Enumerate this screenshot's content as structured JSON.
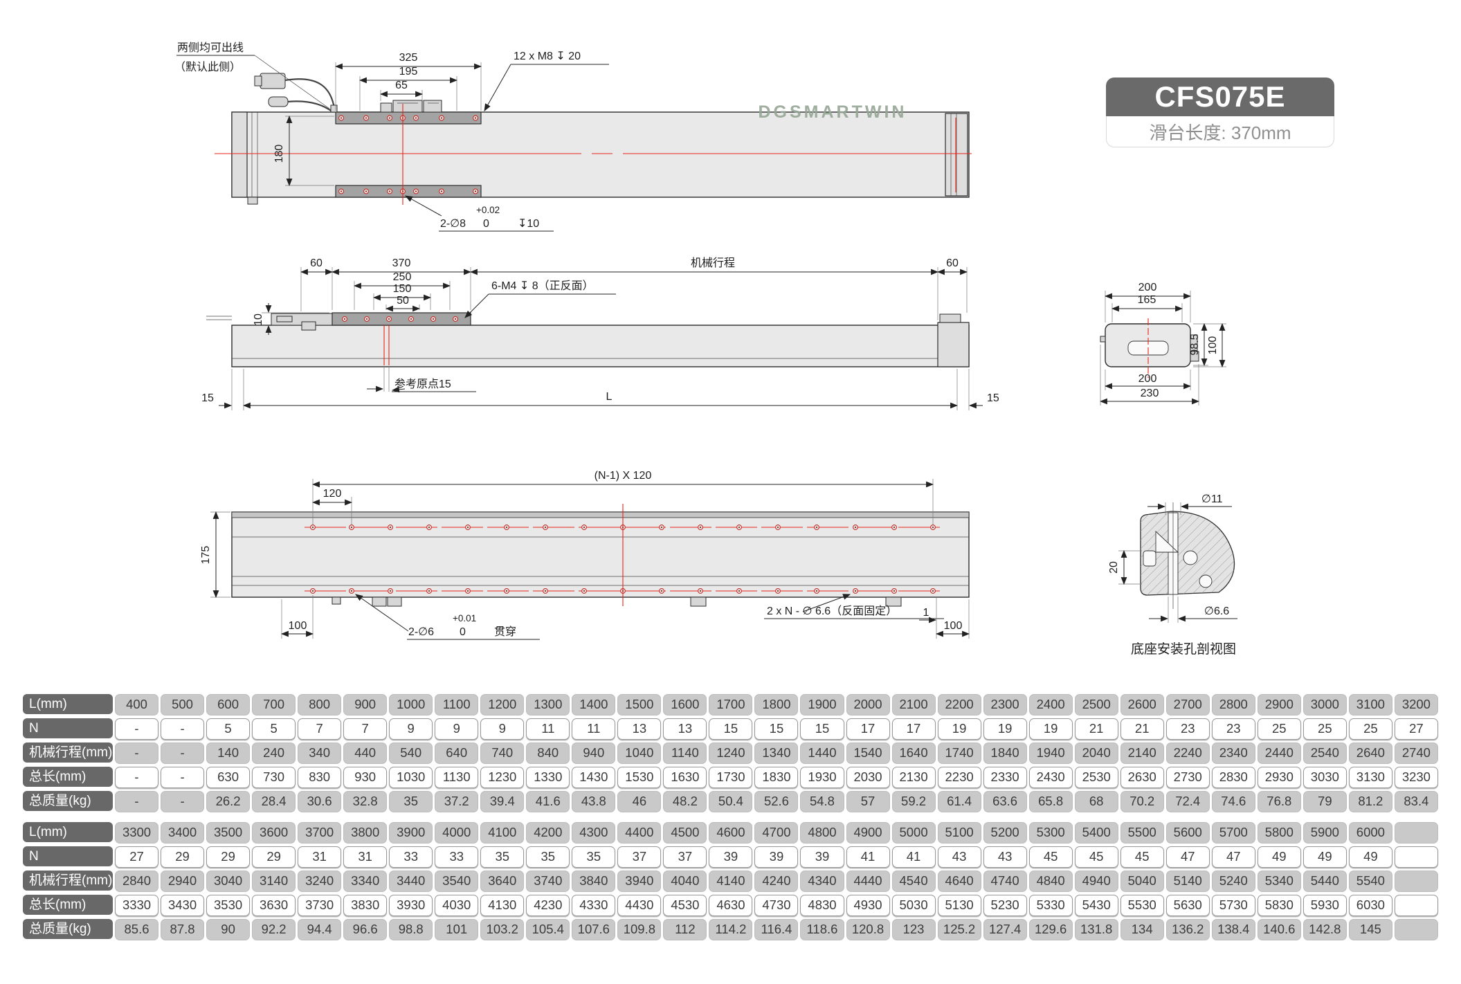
{
  "badge": {
    "model": "CFS075E",
    "subtitle": "滑台长度: 370mm"
  },
  "watermark": "DGSMARTWIN",
  "drawing_top": {
    "callout1": "两侧均可出线",
    "callout2": "（默认此侧）",
    "dim325": "325",
    "dim195": "195",
    "dim65": "65",
    "m8_label": "12 x M8 ↧ 20",
    "dim180": "180",
    "hole_tol_top": "+0.02",
    "hole_label": "2-∅8",
    "hole_tol_bot": "0",
    "hole_depth": "↧10"
  },
  "drawing_mid": {
    "dim60_left": "60",
    "dim370": "370",
    "dim250": "250",
    "dim150": "150",
    "dim50": "50",
    "dim10": "10",
    "m4_label": "6-M4 ↧ 8（正反面）",
    "stroke_label": "机械行程",
    "dim60_right": "60",
    "dim15_left": "15",
    "dimL": "L",
    "dim15_right": "15",
    "origin_label": "参考原点15",
    "side": {
      "dim200_top": "200",
      "dim165": "165",
      "dim985": "98.5",
      "dim100": "100",
      "dim200_bottom": "200",
      "dim230": "230"
    }
  },
  "drawing_bottom": {
    "pitch_label": "(N-1) X 120",
    "dim120": "120",
    "dim175": "175",
    "dim100_left": "100",
    "tol_top": "+0.01",
    "hole_label": "2-∅6",
    "tol_bot": "0",
    "through": "贯穿",
    "fix_label": "2 x N - ∅ 6.6（反面固定）",
    "dim1": "1",
    "dim100_right": "100",
    "section": {
      "d11": "∅11",
      "dim20": "20",
      "d66": "∅6.6",
      "caption": "底座安装孔剖视图"
    }
  },
  "tables": [
    {
      "rows": [
        {
          "header": "L(mm)",
          "values": [
            "400",
            "500",
            "600",
            "700",
            "800",
            "900",
            "1000",
            "1100",
            "1200",
            "1300",
            "1400",
            "1500",
            "1600",
            "1700",
            "1800",
            "1900",
            "2000",
            "2100",
            "2200",
            "2300",
            "2400",
            "2500",
            "2600",
            "2700",
            "2800",
            "2900",
            "3000",
            "3100",
            "3200"
          ]
        },
        {
          "header": "N",
          "values": [
            "-",
            "-",
            "5",
            "5",
            "7",
            "7",
            "9",
            "9",
            "9",
            "11",
            "11",
            "13",
            "13",
            "15",
            "15",
            "15",
            "17",
            "17",
            "19",
            "19",
            "19",
            "21",
            "21",
            "23",
            "23",
            "25",
            "25",
            "25",
            "27"
          ]
        },
        {
          "header": "机械行程(mm)",
          "values": [
            "-",
            "-",
            "140",
            "240",
            "340",
            "440",
            "540",
            "640",
            "740",
            "840",
            "940",
            "1040",
            "1140",
            "1240",
            "1340",
            "1440",
            "1540",
            "1640",
            "1740",
            "1840",
            "1940",
            "2040",
            "2140",
            "2240",
            "2340",
            "2440",
            "2540",
            "2640",
            "2740"
          ]
        },
        {
          "header": "总长(mm)",
          "values": [
            "-",
            "-",
            "630",
            "730",
            "830",
            "930",
            "1030",
            "1130",
            "1230",
            "1330",
            "1430",
            "1530",
            "1630",
            "1730",
            "1830",
            "1930",
            "2030",
            "2130",
            "2230",
            "2330",
            "2430",
            "2530",
            "2630",
            "2730",
            "2830",
            "2930",
            "3030",
            "3130",
            "3230"
          ]
        },
        {
          "header": "总质量(kg)",
          "values": [
            "-",
            "-",
            "26.2",
            "28.4",
            "30.6",
            "32.8",
            "35",
            "37.2",
            "39.4",
            "41.6",
            "43.8",
            "46",
            "48.2",
            "50.4",
            "52.6",
            "54.8",
            "57",
            "59.2",
            "61.4",
            "63.6",
            "65.8",
            "68",
            "70.2",
            "72.4",
            "74.6",
            "76.8",
            "79",
            "81.2",
            "83.4"
          ]
        }
      ]
    },
    {
      "rows": [
        {
          "header": "L(mm)",
          "values": [
            "3300",
            "3400",
            "3500",
            "3600",
            "3700",
            "3800",
            "3900",
            "4000",
            "4100",
            "4200",
            "4300",
            "4400",
            "4500",
            "4600",
            "4700",
            "4800",
            "4900",
            "5000",
            "5100",
            "5200",
            "5300",
            "5400",
            "5500",
            "5600",
            "5700",
            "5800",
            "5900",
            "6000",
            ""
          ]
        },
        {
          "header": "N",
          "values": [
            "27",
            "29",
            "29",
            "29",
            "31",
            "31",
            "33",
            "33",
            "35",
            "35",
            "35",
            "37",
            "37",
            "39",
            "39",
            "39",
            "41",
            "41",
            "43",
            "43",
            "45",
            "45",
            "45",
            "47",
            "47",
            "49",
            "49",
            "49",
            ""
          ]
        },
        {
          "header": "机械行程(mm)",
          "values": [
            "2840",
            "2940",
            "3040",
            "3140",
            "3240",
            "3340",
            "3440",
            "3540",
            "3640",
            "3740",
            "3840",
            "3940",
            "4040",
            "4140",
            "4240",
            "4340",
            "4440",
            "4540",
            "4640",
            "4740",
            "4840",
            "4940",
            "5040",
            "5140",
            "5240",
            "5340",
            "5440",
            "5540",
            ""
          ]
        },
        {
          "header": "总长(mm)",
          "values": [
            "3330",
            "3430",
            "3530",
            "3630",
            "3730",
            "3830",
            "3930",
            "4030",
            "4130",
            "4230",
            "4330",
            "4430",
            "4530",
            "4630",
            "4730",
            "4830",
            "4930",
            "5030",
            "5130",
            "5230",
            "5330",
            "5430",
            "5530",
            "5630",
            "5730",
            "5830",
            "5930",
            "6030",
            ""
          ]
        },
        {
          "header": "总质量(kg)",
          "values": [
            "85.6",
            "87.8",
            "90",
            "92.2",
            "94.4",
            "96.6",
            "98.8",
            "101",
            "103.2",
            "105.4",
            "107.6",
            "109.8",
            "112",
            "114.2",
            "116.4",
            "118.6",
            "120.8",
            "123",
            "125.2",
            "127.4",
            "129.6",
            "131.8",
            "134",
            "136.2",
            "138.4",
            "140.6",
            "142.8",
            "145",
            ""
          ]
        }
      ]
    }
  ]
}
